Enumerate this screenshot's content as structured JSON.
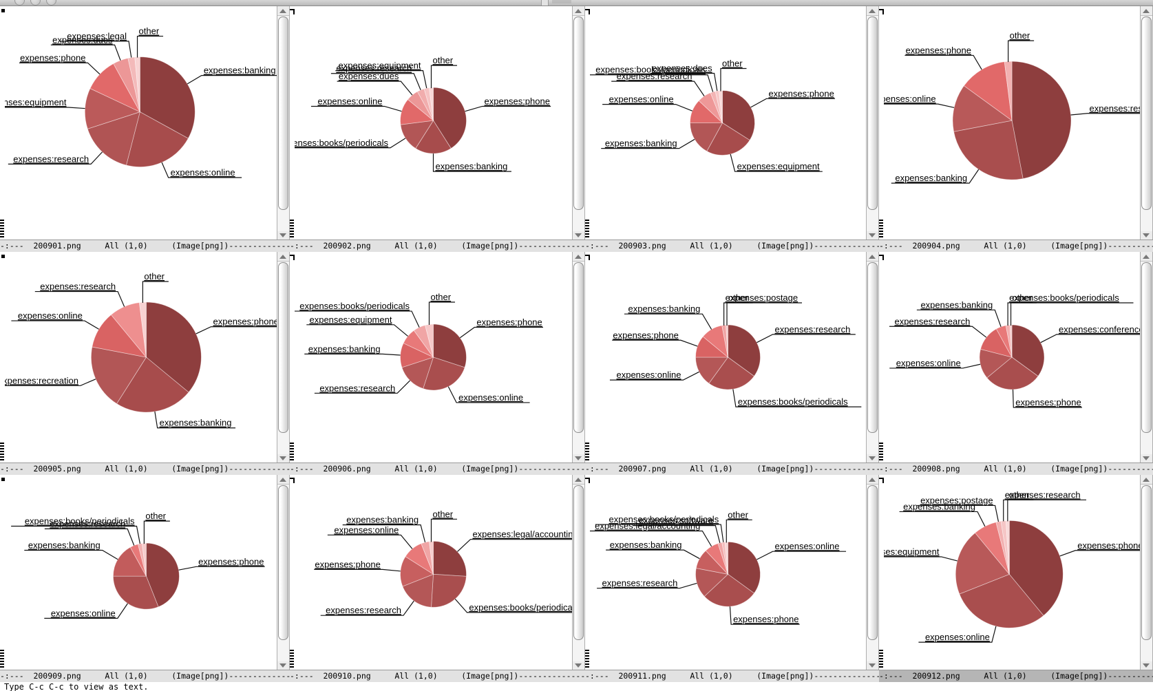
{
  "titlebar": {
    "buttons": [
      "close",
      "minimize",
      "zoom"
    ]
  },
  "echo_area": {
    "message": "Type C-c C-c to view as text."
  },
  "modeline": {
    "prefix": "-:---",
    "position": "All (1,0)",
    "mode": "(Image[png])",
    "dashes": "----------------------------------------------------------------"
  },
  "panes": [
    {
      "file": "200901.png",
      "active": false
    },
    {
      "file": "200902.png",
      "active": false
    },
    {
      "file": "200903.png",
      "active": false
    },
    {
      "file": "200904.png",
      "active": false
    },
    {
      "file": "200905.png",
      "active": false
    },
    {
      "file": "200906.png",
      "active": false
    },
    {
      "file": "200907.png",
      "active": false
    },
    {
      "file": "200908.png",
      "active": false
    },
    {
      "file": "200909.png",
      "active": false
    },
    {
      "file": "200910.png",
      "active": false
    },
    {
      "file": "200911.png",
      "active": false
    },
    {
      "file": "200912.png",
      "active": true
    }
  ],
  "chart_data": [
    {
      "type": "pie",
      "title": "200901.png",
      "legend_position": "callout-labels",
      "layout": {
        "cx": 0.497,
        "cy": 0.453,
        "r": 80,
        "label_gap": 24
      },
      "slices": [
        {
          "label": "expenses:banking",
          "value": 33,
          "color": "#8e3e3e"
        },
        {
          "label": "expenses:online",
          "value": 21,
          "color": "#a74c4c"
        },
        {
          "label": "expenses:research",
          "value": 16,
          "color": "#b05454"
        },
        {
          "label": "expenses:equipment",
          "value": 12,
          "color": "#bb5a5a"
        },
        {
          "label": "expenses:phone",
          "value": 10,
          "color": "#e16969"
        },
        {
          "label": "expenses:dues",
          "value": 4.5,
          "color": "#ec9797"
        },
        {
          "label": "expenses:legal",
          "value": 2,
          "color": "#f3baba"
        },
        {
          "label": "other",
          "value": 1.5,
          "color": "#f8d3d3"
        }
      ]
    },
    {
      "type": "pie",
      "title": "200902.png",
      "legend_position": "callout-labels",
      "layout": {
        "cx": 0.5,
        "cy": 0.49,
        "r": 48,
        "label_gap": 26
      },
      "slices": [
        {
          "label": "expenses:phone",
          "value": 41,
          "color": "#8e3e3e"
        },
        {
          "label": "expenses:banking",
          "value": 18,
          "color": "#a74c4c"
        },
        {
          "label": "expenses:books/periodicals",
          "value": 14,
          "color": "#b25656"
        },
        {
          "label": "expenses:online",
          "value": 13,
          "color": "#e16969"
        },
        {
          "label": "expenses:dues",
          "value": 6,
          "color": "#ec9797"
        },
        {
          "label": "expenses:research",
          "value": 3.5,
          "color": "#f1adad"
        },
        {
          "label": "expenses:equipment",
          "value": 2.5,
          "color": "#f5c3c3"
        },
        {
          "label": "other",
          "value": 2,
          "color": "#f9d7d7"
        }
      ]
    },
    {
      "type": "pie",
      "title": "200903.png",
      "legend_position": "callout-labels",
      "layout": {
        "cx": 0.48,
        "cy": 0.5,
        "r": 47,
        "label_gap": 26
      },
      "slices": [
        {
          "label": "expenses:phone",
          "value": 34,
          "color": "#8e3e3e"
        },
        {
          "label": "expenses:equipment",
          "value": 24,
          "color": "#a74c4c"
        },
        {
          "label": "expenses:banking",
          "value": 17,
          "color": "#b25656"
        },
        {
          "label": "expenses:online",
          "value": 12,
          "color": "#e16969"
        },
        {
          "label": "expenses:research",
          "value": 7,
          "color": "#ee9898"
        },
        {
          "label": "expenses:books/periodicals",
          "value": 2.5,
          "color": "#f3b4b4"
        },
        {
          "label": "expenses:dues",
          "value": 1.8,
          "color": "#f6c7c7"
        },
        {
          "label": "other",
          "value": 1.7,
          "color": "#f9d8d8"
        }
      ]
    },
    {
      "type": "pie",
      "title": "200904.png",
      "legend_position": "callout-labels",
      "layout": {
        "cx": 0.5,
        "cy": 0.49,
        "r": 86,
        "label_gap": 24
      },
      "slices": [
        {
          "label": "expenses:research",
          "value": 47,
          "color": "#8e3e3e"
        },
        {
          "label": "expenses:banking",
          "value": 25,
          "color": "#a94e4e"
        },
        {
          "label": "expenses:online",
          "value": 13,
          "color": "#b85959"
        },
        {
          "label": "expenses:phone",
          "value": 13,
          "color": "#e16969"
        },
        {
          "label": "other",
          "value": 2,
          "color": "#f2b1b1"
        }
      ]
    },
    {
      "type": "pie",
      "title": "200905.png",
      "legend_position": "callout-labels",
      "layout": {
        "cx": 0.52,
        "cy": 0.5,
        "r": 80,
        "label_gap": 24
      },
      "slices": [
        {
          "label": "expenses:phone",
          "value": 36,
          "color": "#8e3e3e"
        },
        {
          "label": "expenses:banking",
          "value": 23,
          "color": "#a74c4c"
        },
        {
          "label": "expenses:recreation",
          "value": 19,
          "color": "#b25656"
        },
        {
          "label": "expenses:online",
          "value": 11,
          "color": "#d96363"
        },
        {
          "label": "expenses:research",
          "value": 9,
          "color": "#ee8f8f"
        },
        {
          "label": "other",
          "value": 2,
          "color": "#f8d2d2"
        }
      ]
    },
    {
      "type": "pie",
      "title": "200906.png",
      "legend_position": "callout-labels",
      "layout": {
        "cx": 0.5,
        "cy": 0.5,
        "r": 48,
        "label_gap": 26
      },
      "slices": [
        {
          "label": "expenses:phone",
          "value": 30,
          "color": "#8e3e3e"
        },
        {
          "label": "expenses:online",
          "value": 25,
          "color": "#a94e4e"
        },
        {
          "label": "expenses:research",
          "value": 15,
          "color": "#b45757"
        },
        {
          "label": "expenses:banking",
          "value": 12,
          "color": "#d96363"
        },
        {
          "label": "expenses:equipment",
          "value": 8,
          "color": "#e87979"
        },
        {
          "label": "expenses:books/periodicals",
          "value": 6,
          "color": "#f0a5a5"
        },
        {
          "label": "other",
          "value": 4,
          "color": "#f6c8c8"
        }
      ]
    },
    {
      "type": "pie",
      "title": "200907.png",
      "legend_position": "callout-labels",
      "layout": {
        "cx": 0.5,
        "cy": 0.5,
        "r": 47,
        "label_gap": 26
      },
      "slices": [
        {
          "label": "expenses:research",
          "value": 35,
          "color": "#8e3e3e"
        },
        {
          "label": "expenses:books/periodicals",
          "value": 25,
          "color": "#a94e4e"
        },
        {
          "label": "expenses:online",
          "value": 15,
          "color": "#b45757"
        },
        {
          "label": "expenses:phone",
          "value": 11,
          "color": "#d96363"
        },
        {
          "label": "expenses:banking",
          "value": 11,
          "color": "#e87979"
        },
        {
          "label": "expenses:postage",
          "value": 2,
          "color": "#f0a5a5"
        },
        {
          "label": "other",
          "value": 1,
          "color": "#f6c8c8"
        }
      ]
    },
    {
      "type": "pie",
      "title": "200908.png",
      "legend_position": "callout-labels",
      "layout": {
        "cx": 0.5,
        "cy": 0.5,
        "r": 47,
        "label_gap": 26
      },
      "slices": [
        {
          "label": "expenses:conferences",
          "value": 35,
          "color": "#8e3e3e"
        },
        {
          "label": "expenses:phone",
          "value": 29,
          "color": "#a94e4e"
        },
        {
          "label": "expenses:online",
          "value": 15,
          "color": "#b45757"
        },
        {
          "label": "expenses:research",
          "value": 13,
          "color": "#d96363"
        },
        {
          "label": "expenses:banking",
          "value": 5,
          "color": "#e87979"
        },
        {
          "label": "expenses:books/periodicals",
          "value": 2,
          "color": "#f2b1b1"
        },
        {
          "label": "other",
          "value": 1,
          "color": "#f6cccc"
        }
      ]
    },
    {
      "type": "pie",
      "title": "200909.png",
      "legend_position": "callout-labels",
      "layout": {
        "cx": 0.52,
        "cy": 0.52,
        "r": 48,
        "label_gap": 26
      },
      "slices": [
        {
          "label": "expenses:phone",
          "value": 44,
          "color": "#8e3e3e"
        },
        {
          "label": "expenses:online",
          "value": 31,
          "color": "#a94e4e"
        },
        {
          "label": "expenses:banking",
          "value": 17,
          "color": "#c25c5c"
        },
        {
          "label": "expenses:research",
          "value": 4,
          "color": "#e87979"
        },
        {
          "label": "expenses:books/periodicals",
          "value": 2,
          "color": "#f2b1b1"
        },
        {
          "label": "other",
          "value": 2,
          "color": "#f6cccc"
        }
      ]
    },
    {
      "type": "pie",
      "title": "200910.png",
      "legend_position": "callout-labels",
      "layout": {
        "cx": 0.5,
        "cy": 0.51,
        "r": 48,
        "label_gap": 26
      },
      "slices": [
        {
          "label": "expenses:legal/accounting",
          "value": 26,
          "color": "#8e3e3e"
        },
        {
          "label": "expenses:books/periodicals",
          "value": 25,
          "color": "#a94e4e"
        },
        {
          "label": "expenses:research",
          "value": 18,
          "color": "#b45757"
        },
        {
          "label": "expenses:phone",
          "value": 15,
          "color": "#c75f5f"
        },
        {
          "label": "expenses:online",
          "value": 10,
          "color": "#e87979"
        },
        {
          "label": "expenses:banking",
          "value": 4,
          "color": "#f0a5a5"
        },
        {
          "label": "other",
          "value": 2,
          "color": "#f6cccc"
        }
      ]
    },
    {
      "type": "pie",
      "title": "200911.png",
      "legend_position": "callout-labels",
      "layout": {
        "cx": 0.5,
        "cy": 0.51,
        "r": 47,
        "label_gap": 26
      },
      "slices": [
        {
          "label": "expenses:online",
          "value": 35,
          "color": "#8e3e3e"
        },
        {
          "label": "expenses:phone",
          "value": 28,
          "color": "#a94e4e"
        },
        {
          "label": "expenses:research",
          "value": 15,
          "color": "#b45757"
        },
        {
          "label": "expenses:banking",
          "value": 10,
          "color": "#c75f5f"
        },
        {
          "label": "expenses:legal/accounting",
          "value": 7,
          "color": "#e87979"
        },
        {
          "label": "expenses:software",
          "value": 2,
          "color": "#f0a5a5"
        },
        {
          "label": "expenses:books/periodicals",
          "value": 1.5,
          "color": "#f4bdbd"
        },
        {
          "label": "other",
          "value": 1.5,
          "color": "#f8d4d4"
        }
      ]
    },
    {
      "type": "pie",
      "title": "200912.png",
      "legend_position": "callout-labels",
      "layout": {
        "cx": 0.49,
        "cy": 0.51,
        "r": 78,
        "label_gap": 24
      },
      "slices": [
        {
          "label": "expenses:phone",
          "value": 39,
          "color": "#8e3e3e"
        },
        {
          "label": "expenses:online",
          "value": 30,
          "color": "#a94e4e"
        },
        {
          "label": "expenses:equipment",
          "value": 20,
          "color": "#b85959"
        },
        {
          "label": "expenses:banking",
          "value": 7,
          "color": "#e87979"
        },
        {
          "label": "expenses:postage",
          "value": 1.5,
          "color": "#f2b1b1"
        },
        {
          "label": "expenses:research",
          "value": 1.5,
          "color": "#f5c6c6"
        },
        {
          "label": "other",
          "value": 1,
          "color": "#f9d8d8"
        }
      ]
    }
  ]
}
